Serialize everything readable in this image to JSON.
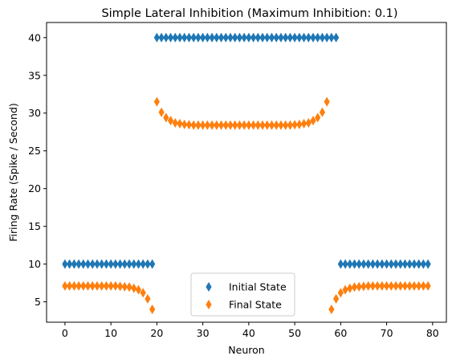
{
  "chart_data": {
    "type": "scatter",
    "title": "Simple Lateral Inhibition (Maximum Inhibition: 0.1)",
    "xlabel": "Neuron",
    "ylabel": "Firing Rate (Spike / Second)",
    "xlim": [
      -4,
      83
    ],
    "ylim": [
      2.3,
      42
    ],
    "xticks": [
      "0",
      "10",
      "20",
      "30",
      "40",
      "50",
      "60",
      "70",
      "80"
    ],
    "yticks": [
      "5",
      "10",
      "15",
      "20",
      "25",
      "30",
      "35",
      "40"
    ],
    "grid": false,
    "legend_position": "lower-center",
    "marker": "diamond",
    "series": [
      {
        "name": "Initial State",
        "color": "#1f77b4",
        "x": [
          0,
          1,
          2,
          3,
          4,
          5,
          6,
          7,
          8,
          9,
          10,
          11,
          12,
          13,
          14,
          15,
          16,
          17,
          18,
          19,
          20,
          21,
          22,
          23,
          24,
          25,
          26,
          27,
          28,
          29,
          30,
          31,
          32,
          33,
          34,
          35,
          36,
          37,
          38,
          39,
          40,
          41,
          42,
          43,
          44,
          45,
          46,
          47,
          48,
          49,
          50,
          51,
          52,
          53,
          54,
          55,
          56,
          57,
          58,
          59,
          60,
          61,
          62,
          63,
          64,
          65,
          66,
          67,
          68,
          69,
          70,
          71,
          72,
          73,
          74,
          75,
          76,
          77,
          78,
          79
        ],
        "y": [
          10,
          10,
          10,
          10,
          10,
          10,
          10,
          10,
          10,
          10,
          10,
          10,
          10,
          10,
          10,
          10,
          10,
          10,
          10,
          10,
          40,
          40,
          40,
          40,
          40,
          40,
          40,
          40,
          40,
          40,
          40,
          40,
          40,
          40,
          40,
          40,
          40,
          40,
          40,
          40,
          40,
          40,
          40,
          40,
          40,
          40,
          40,
          40,
          40,
          40,
          40,
          40,
          40,
          40,
          40,
          40,
          40,
          40,
          40,
          40,
          10,
          10,
          10,
          10,
          10,
          10,
          10,
          10,
          10,
          10,
          10,
          10,
          10,
          10,
          10,
          10,
          10,
          10,
          10,
          10
        ]
      },
      {
        "name": "Final State",
        "color": "#ff7f0e",
        "x": [
          0,
          1,
          2,
          3,
          4,
          5,
          6,
          7,
          8,
          9,
          10,
          11,
          12,
          13,
          14,
          15,
          16,
          17,
          18,
          19,
          20,
          21,
          22,
          23,
          24,
          25,
          26,
          27,
          28,
          29,
          30,
          31,
          32,
          33,
          34,
          35,
          36,
          37,
          38,
          39,
          40,
          41,
          42,
          43,
          44,
          45,
          46,
          47,
          48,
          49,
          50,
          51,
          52,
          53,
          54,
          55,
          56,
          57,
          58,
          59,
          60,
          61,
          62,
          63,
          64,
          65,
          66,
          67,
          68,
          69,
          70,
          71,
          72,
          73,
          74,
          75,
          76,
          77,
          78,
          79
        ],
        "y": [
          7.1,
          7.1,
          7.1,
          7.1,
          7.1,
          7.1,
          7.1,
          7.1,
          7.1,
          7.1,
          7.1,
          7.1,
          7.05,
          7.0,
          6.95,
          6.8,
          6.6,
          6.2,
          5.4,
          4.0,
          31.5,
          30.1,
          29.4,
          29.0,
          28.7,
          28.6,
          28.5,
          28.45,
          28.4,
          28.4,
          28.4,
          28.4,
          28.4,
          28.4,
          28.4,
          28.4,
          28.4,
          28.4,
          28.4,
          28.4,
          28.4,
          28.4,
          28.4,
          28.4,
          28.4,
          28.4,
          28.4,
          28.4,
          28.4,
          28.4,
          28.45,
          28.5,
          28.6,
          28.7,
          29.0,
          29.4,
          30.1,
          31.5,
          4.0,
          5.4,
          6.2,
          6.6,
          6.8,
          6.95,
          7.0,
          7.05,
          7.1,
          7.1,
          7.1,
          7.1,
          7.1,
          7.1,
          7.1,
          7.1,
          7.1,
          7.1,
          7.1,
          7.1,
          7.1,
          7.1
        ]
      }
    ]
  }
}
